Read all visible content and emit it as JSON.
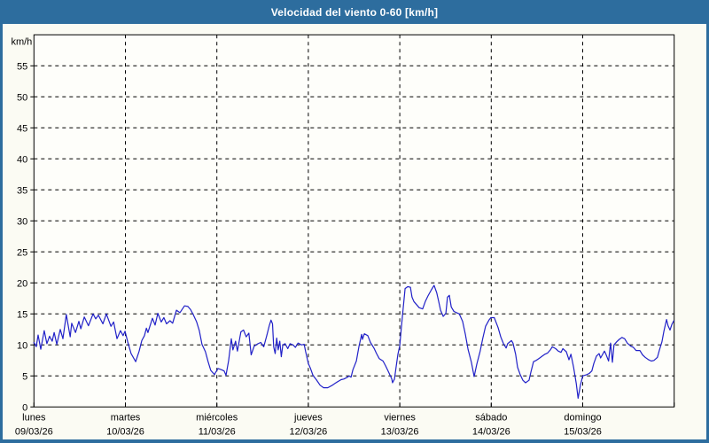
{
  "window": {
    "title": "Velocidad del viento 0-60 [km/h]"
  },
  "colors": {
    "frame": "#2d6d9e",
    "background": "#fbfbf3",
    "plot_background": "#fefefa",
    "grid": "#000000",
    "axis": "#000000",
    "text": "#000000",
    "title_text": "#ffffff",
    "line": "#2121c8"
  },
  "chart_data": {
    "type": "line",
    "title": "Velocidad del viento 0-60 [km/h]",
    "ylabel": "km/h",
    "ylim": [
      0,
      60
    ],
    "yticks": [
      0,
      5,
      10,
      15,
      20,
      25,
      30,
      35,
      40,
      45,
      50,
      55
    ],
    "grid": true,
    "x_total_hours": 168,
    "x_day_ticks_hours": [
      0,
      24,
      48,
      72,
      96,
      120,
      144,
      168
    ],
    "days": [
      {
        "name": "lunes",
        "date": "09/03/26"
      },
      {
        "name": "martes",
        "date": "10/03/26"
      },
      {
        "name": "miércoles",
        "date": "11/03/26"
      },
      {
        "name": "jueves",
        "date": "12/03/26"
      },
      {
        "name": "viernes",
        "date": "13/03/26"
      },
      {
        "name": "sábado",
        "date": "14/03/26"
      },
      {
        "name": "domingo",
        "date": "15/03/26"
      }
    ],
    "series": [
      {
        "name": "Velocidad del viento [km/h]",
        "points": [
          [
            0,
            10.4
          ],
          [
            0.6,
            9.7
          ],
          [
            1.1,
            11.6
          ],
          [
            1.8,
            9.3
          ],
          [
            2.7,
            12.3
          ],
          [
            3.4,
            10.2
          ],
          [
            4.1,
            11.4
          ],
          [
            4.8,
            10.6
          ],
          [
            5.3,
            12.0
          ],
          [
            6.0,
            10.1
          ],
          [
            6.9,
            12.5
          ],
          [
            7.6,
            11.0
          ],
          [
            8.5,
            14.9
          ],
          [
            9.5,
            11.3
          ],
          [
            9.9,
            13.5
          ],
          [
            10.9,
            12.0
          ],
          [
            11.8,
            13.8
          ],
          [
            12.3,
            12.6
          ],
          [
            13.2,
            14.5
          ],
          [
            14.3,
            13.1
          ],
          [
            15.5,
            15.0
          ],
          [
            16.2,
            14.2
          ],
          [
            16.9,
            14.8
          ],
          [
            18.1,
            13.4
          ],
          [
            19.0,
            15.0
          ],
          [
            20.2,
            13.0
          ],
          [
            20.9,
            13.7
          ],
          [
            21.8,
            11.0
          ],
          [
            22.7,
            12.3
          ],
          [
            23.4,
            11.5
          ],
          [
            23.9,
            12.2
          ],
          [
            24.6,
            10.5
          ],
          [
            25.5,
            8.6
          ],
          [
            26.7,
            7.3
          ],
          [
            27.6,
            9.0
          ],
          [
            28.3,
            10.7
          ],
          [
            29.0,
            11.5
          ],
          [
            29.5,
            12.7
          ],
          [
            29.9,
            12.0
          ],
          [
            31.1,
            14.3
          ],
          [
            31.8,
            13.2
          ],
          [
            32.5,
            15.1
          ],
          [
            33.4,
            13.7
          ],
          [
            34.1,
            14.4
          ],
          [
            34.8,
            13.4
          ],
          [
            35.7,
            13.9
          ],
          [
            36.4,
            13.5
          ],
          [
            37.4,
            15.6
          ],
          [
            38.3,
            15.2
          ],
          [
            39.5,
            16.3
          ],
          [
            40.4,
            16.2
          ],
          [
            41.1,
            15.7
          ],
          [
            41.8,
            14.9
          ],
          [
            42.7,
            13.7
          ],
          [
            43.4,
            12.3
          ],
          [
            44.1,
            10.1
          ],
          [
            45.0,
            8.9
          ],
          [
            45.7,
            7.3
          ],
          [
            46.4,
            5.9
          ],
          [
            47.4,
            5.2
          ],
          [
            47.6,
            5.5
          ],
          [
            48.3,
            6.2
          ],
          [
            49.2,
            6.0
          ],
          [
            49.9,
            5.8
          ],
          [
            50.4,
            5.1
          ],
          [
            51.1,
            7.5
          ],
          [
            51.8,
            11.0
          ],
          [
            52.2,
            9.2
          ],
          [
            52.9,
            10.6
          ],
          [
            53.4,
            9.0
          ],
          [
            54.3,
            12.1
          ],
          [
            55.0,
            12.4
          ],
          [
            55.7,
            11.3
          ],
          [
            56.4,
            11.9
          ],
          [
            57.0,
            8.4
          ],
          [
            57.8,
            9.8
          ],
          [
            58.8,
            10.2
          ],
          [
            59.5,
            10.4
          ],
          [
            60.3,
            9.7
          ],
          [
            61.1,
            11.5
          ],
          [
            61.8,
            13.2
          ],
          [
            62.2,
            14.0
          ],
          [
            62.6,
            13.4
          ],
          [
            62.9,
            9.7
          ],
          [
            63.3,
            8.6
          ],
          [
            63.7,
            11.1
          ],
          [
            64.1,
            9.2
          ],
          [
            64.5,
            10.6
          ],
          [
            64.9,
            8.1
          ],
          [
            65.3,
            10.0
          ],
          [
            65.9,
            10.2
          ],
          [
            66.6,
            9.4
          ],
          [
            67.2,
            10.2
          ],
          [
            68.0,
            10.0
          ],
          [
            68.6,
            9.6
          ],
          [
            69.3,
            10.3
          ],
          [
            70.2,
            10.0
          ],
          [
            70.9,
            10.1
          ],
          [
            71.3,
            8.9
          ],
          [
            72.0,
            7.0
          ],
          [
            72.5,
            6.3
          ],
          [
            73.2,
            5.1
          ],
          [
            74.1,
            4.4
          ],
          [
            75.1,
            3.5
          ],
          [
            76.0,
            3.1
          ],
          [
            77.1,
            3.1
          ],
          [
            78.3,
            3.5
          ],
          [
            79.5,
            4.0
          ],
          [
            80.6,
            4.4
          ],
          [
            81.3,
            4.5
          ],
          [
            82.3,
            4.8
          ],
          [
            82.7,
            5.0
          ],
          [
            83.2,
            4.8
          ],
          [
            83.7,
            6.0
          ],
          [
            84.6,
            7.4
          ],
          [
            85.3,
            9.8
          ],
          [
            86.0,
            11.7
          ],
          [
            86.2,
            10.9
          ],
          [
            86.7,
            11.8
          ],
          [
            87.6,
            11.5
          ],
          [
            88.3,
            10.4
          ],
          [
            89.2,
            9.5
          ],
          [
            89.9,
            8.6
          ],
          [
            90.6,
            7.8
          ],
          [
            91.6,
            7.4
          ],
          [
            92.3,
            6.6
          ],
          [
            93.0,
            5.7
          ],
          [
            93.9,
            4.5
          ],
          [
            94.1,
            3.9
          ],
          [
            94.6,
            4.5
          ],
          [
            95.1,
            6.7
          ],
          [
            95.5,
            8.5
          ],
          [
            96.0,
            9.9
          ],
          [
            96.4,
            12.7
          ],
          [
            96.9,
            16.0
          ],
          [
            97.4,
            19.1
          ],
          [
            98.1,
            19.4
          ],
          [
            98.8,
            19.3
          ],
          [
            99.2,
            17.7
          ],
          [
            99.7,
            17.0
          ],
          [
            100.4,
            16.5
          ],
          [
            101.1,
            16.0
          ],
          [
            102.0,
            15.8
          ],
          [
            102.7,
            17.0
          ],
          [
            103.4,
            17.9
          ],
          [
            104.3,
            18.9
          ],
          [
            105.0,
            19.6
          ],
          [
            105.7,
            18.4
          ],
          [
            106.2,
            17.0
          ],
          [
            106.7,
            15.6
          ],
          [
            107.4,
            14.6
          ],
          [
            108.1,
            15.1
          ],
          [
            108.5,
            17.7
          ],
          [
            109.0,
            18.0
          ],
          [
            109.5,
            16.1
          ],
          [
            110.2,
            15.4
          ],
          [
            110.9,
            15.2
          ],
          [
            111.6,
            15.0
          ],
          [
            112.5,
            13.8
          ],
          [
            113.2,
            11.7
          ],
          [
            113.9,
            9.3
          ],
          [
            114.8,
            7.2
          ],
          [
            115.5,
            4.9
          ],
          [
            116.2,
            6.9
          ],
          [
            117.1,
            9.0
          ],
          [
            117.8,
            11.1
          ],
          [
            118.5,
            13.0
          ],
          [
            119.4,
            14.0
          ],
          [
            119.9,
            14.4
          ],
          [
            120.8,
            14.4
          ],
          [
            121.8,
            12.8
          ],
          [
            122.5,
            11.3
          ],
          [
            123.2,
            10.2
          ],
          [
            123.9,
            9.5
          ],
          [
            124.3,
            10.2
          ],
          [
            125.3,
            10.7
          ],
          [
            125.7,
            10.3
          ],
          [
            126.4,
            8.5
          ],
          [
            126.9,
            6.4
          ],
          [
            127.6,
            5.2
          ],
          [
            128.3,
            4.3
          ],
          [
            129.0,
            3.9
          ],
          [
            129.9,
            4.3
          ],
          [
            130.4,
            5.6
          ],
          [
            131.1,
            7.3
          ],
          [
            131.8,
            7.5
          ],
          [
            132.5,
            7.8
          ],
          [
            133.4,
            8.2
          ],
          [
            134.1,
            8.5
          ],
          [
            134.8,
            8.7
          ],
          [
            135.5,
            9.2
          ],
          [
            136.0,
            9.7
          ],
          [
            136.9,
            9.4
          ],
          [
            137.6,
            9.0
          ],
          [
            138.3,
            8.8
          ],
          [
            138.8,
            9.4
          ],
          [
            139.7,
            8.9
          ],
          [
            140.4,
            7.6
          ],
          [
            140.9,
            8.5
          ],
          [
            141.6,
            6.4
          ],
          [
            142.3,
            3.8
          ],
          [
            142.8,
            1.4
          ],
          [
            143.4,
            3.5
          ],
          [
            144.0,
            5.0
          ],
          [
            145.0,
            5.2
          ],
          [
            145.7,
            5.4
          ],
          [
            146.4,
            5.8
          ],
          [
            146.9,
            7.0
          ],
          [
            147.6,
            8.2
          ],
          [
            148.3,
            8.6
          ],
          [
            148.7,
            7.9
          ],
          [
            149.7,
            9.0
          ],
          [
            150.1,
            8.5
          ],
          [
            150.8,
            7.4
          ],
          [
            151.3,
            10.3
          ],
          [
            151.8,
            7.2
          ],
          [
            152.2,
            10.0
          ],
          [
            152.9,
            10.5
          ],
          [
            153.6,
            10.9
          ],
          [
            154.3,
            11.2
          ],
          [
            155.0,
            11.0
          ],
          [
            155.7,
            10.3
          ],
          [
            156.6,
            9.8
          ],
          [
            157.3,
            9.6
          ],
          [
            158.0,
            9.1
          ],
          [
            159.0,
            9.1
          ],
          [
            159.7,
            8.4
          ],
          [
            160.4,
            8.0
          ],
          [
            161.3,
            7.6
          ],
          [
            162.0,
            7.4
          ],
          [
            162.7,
            7.5
          ],
          [
            163.6,
            8.0
          ],
          [
            164.1,
            9.1
          ],
          [
            164.8,
            10.5
          ],
          [
            165.3,
            12.2
          ],
          [
            166.0,
            14.1
          ],
          [
            166.4,
            13.1
          ],
          [
            166.9,
            12.4
          ],
          [
            167.4,
            13.3
          ],
          [
            167.9,
            13.9
          ]
        ]
      }
    ]
  }
}
